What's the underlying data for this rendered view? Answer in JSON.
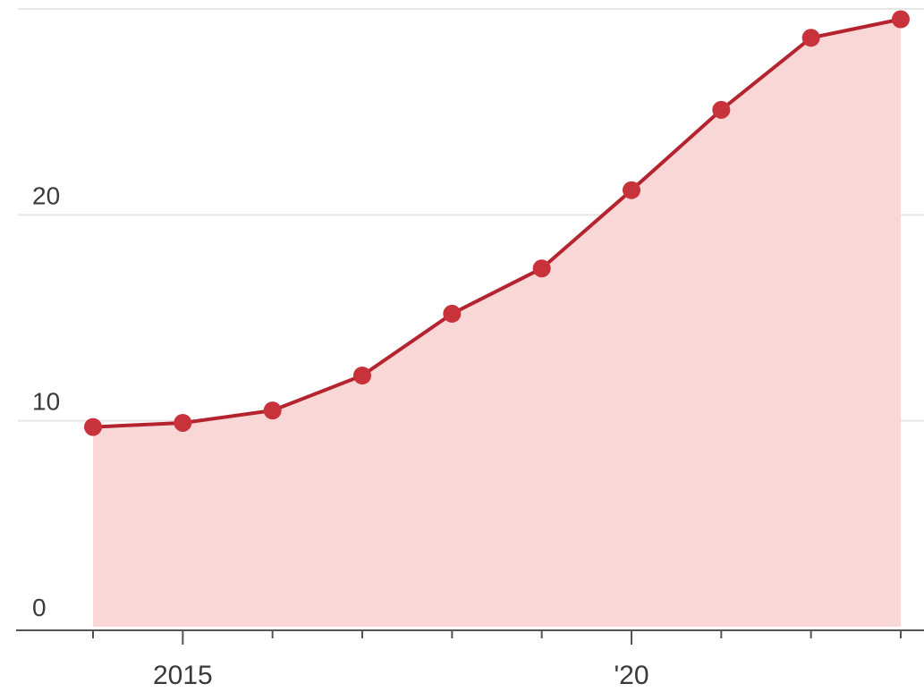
{
  "chart_data": {
    "type": "area",
    "x": [
      2014,
      2015,
      2016,
      2017,
      2018,
      2019,
      2020,
      2021,
      2022,
      2023
    ],
    "series": [
      {
        "values": [
          9.7,
          9.9,
          10.5,
          12.2,
          15.2,
          17.4,
          21.2,
          25.1,
          28.6,
          29.5
        ]
      }
    ],
    "ylim": [
      0,
      30
    ],
    "yticks": [
      0,
      10,
      20
    ],
    "ytick_labels": [
      "0",
      "10",
      "20"
    ],
    "xlim": [
      2014,
      2023
    ],
    "xticks_major": [
      2015,
      2020
    ],
    "xtick_labels": [
      "2015",
      "'20"
    ],
    "xticks_minor": [
      2014,
      2015,
      2016,
      2017,
      2018,
      2019,
      2020,
      2021,
      2022,
      2023
    ],
    "grid": true,
    "colors": {
      "line": "#b5232f",
      "marker": "#c8323a",
      "fill": "#f8d7d6",
      "grid": "#e6e6e6",
      "axis": "#555555",
      "text": "#3a3a3a"
    }
  }
}
